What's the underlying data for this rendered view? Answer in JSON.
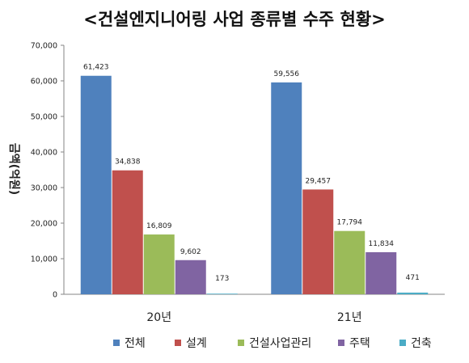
{
  "chart_data": {
    "type": "bar",
    "title": "<건설엔지니어링 사업 종류별 수주 현황>",
    "ylabel": "금액(억원)",
    "xlabel": "",
    "ylim": [
      0,
      70000
    ],
    "yticks": [
      "0",
      "10,000",
      "20,000",
      "30,000",
      "40,000",
      "50,000",
      "60,000",
      "70,000"
    ],
    "categories": [
      "20년",
      "21년"
    ],
    "series": [
      {
        "name": "전체",
        "color": "#4f81bd",
        "values": [
          61423,
          59556
        ],
        "labels": [
          "61,423",
          "59,556"
        ]
      },
      {
        "name": "설계",
        "color": "#c0504d",
        "values": [
          34838,
          29457
        ],
        "labels": [
          "34,838",
          "29,457"
        ]
      },
      {
        "name": "건설사업관리",
        "color": "#9bbb59",
        "values": [
          16809,
          17794
        ],
        "labels": [
          "16,809",
          "17,794"
        ]
      },
      {
        "name": "주택",
        "color": "#8064a2",
        "values": [
          9602,
          11834
        ],
        "labels": [
          "9,602",
          "11,834"
        ]
      },
      {
        "name": "건축",
        "color": "#4bacc6",
        "values": [
          173,
          471
        ],
        "labels": [
          "173",
          "471"
        ]
      }
    ],
    "grid": false,
    "legend_position": "bottom"
  }
}
